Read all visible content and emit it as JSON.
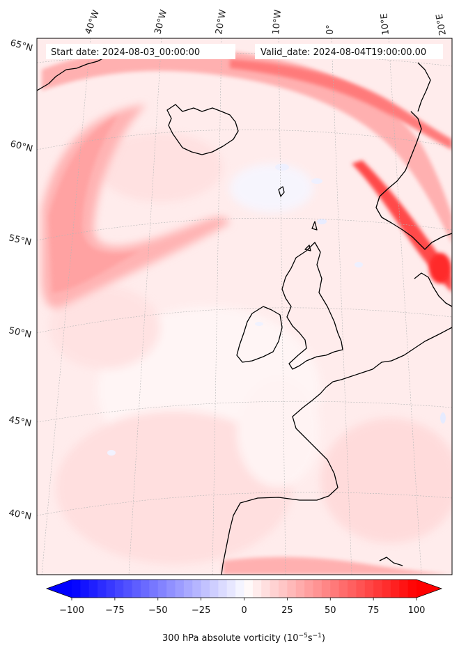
{
  "map": {
    "start_date": "Start date: 2024-08-03_00:00:00",
    "valid_date": "Valid_date: 2024-08-04T19:00:00.00",
    "longitude_labels": [
      "40°W",
      "30°W",
      "20°W",
      "10°W",
      "0°",
      "10°E",
      "20°E"
    ],
    "latitude_labels": [
      "65°N",
      "60°N",
      "55°N",
      "50°N",
      "45°N",
      "40°N"
    ]
  },
  "colorbar": {
    "label": "300 hPa absolute vorticity (10",
    "label_exp": "−5",
    "label_unit": "s",
    "label_exp2": "−1",
    "label_close": ")",
    "ticks": [
      "−100",
      "−75",
      "−50",
      "−25",
      "0",
      "25",
      "50",
      "75",
      "100"
    ],
    "min": -100,
    "max": 100,
    "low_color": "#0000ff",
    "mid_color": "#ffffff",
    "high_color": "#ff0000"
  }
}
